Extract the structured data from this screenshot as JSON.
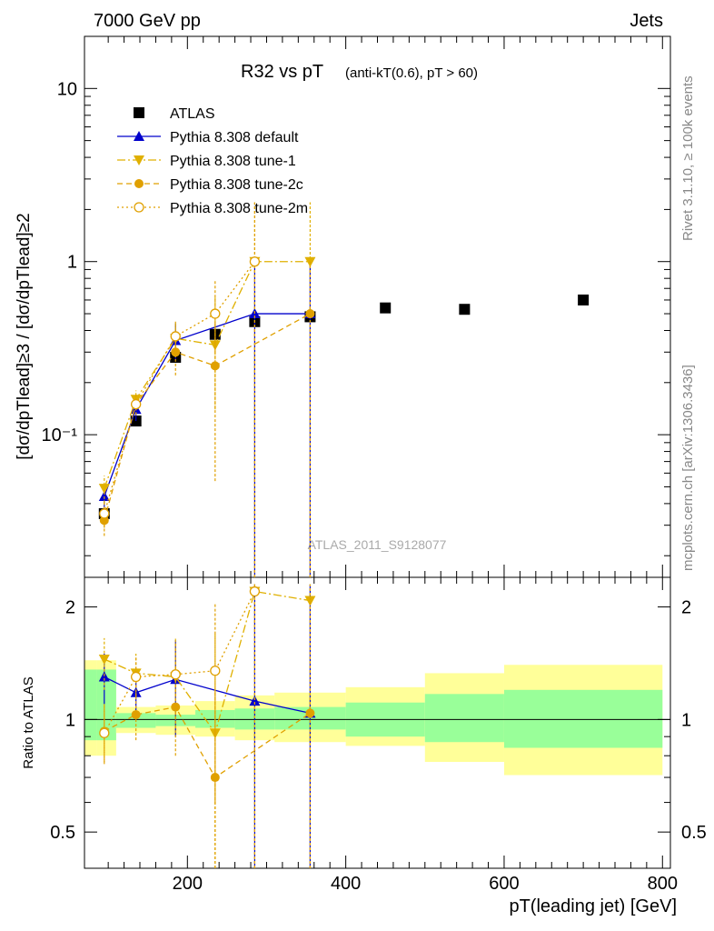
{
  "header": {
    "left": "7000 GeV pp",
    "right": "Jets"
  },
  "side_text": {
    "rivet": "Rivet 3.1.10, ≥ 100k events",
    "mcplots": "mcplots.cern.ch [arXiv:1306.3436]"
  },
  "chart_data": [
    {
      "type": "scatter",
      "title": "R32 vs pT",
      "title_small": "(anti-kT(0.6), pT > 60)",
      "watermark": "ATLAS_2011_S9128077",
      "ylabel": "[dσ/dpTlead]≥3 / [dσ/dpTlead]≥2",
      "xlim": [
        70,
        810
      ],
      "ylim": [
        0.015,
        20
      ],
      "yscale": "log",
      "yticks": [
        0.1,
        1,
        10
      ],
      "ytick_labels": [
        "10⁻¹",
        "1",
        "10"
      ],
      "legend_position": "top-left",
      "series": [
        {
          "name": "ATLAS",
          "color": "#000000",
          "marker": "square",
          "x": [
            95,
            135,
            185,
            235,
            285,
            355,
            450,
            550,
            700
          ],
          "y": [
            0.035,
            0.12,
            0.28,
            0.38,
            0.45,
            0.48,
            0.54,
            0.53,
            0.6
          ]
        },
        {
          "name": "Pythia 8.308 default",
          "color": "#0000cc",
          "marker": "triangle-up",
          "dash": "",
          "x": [
            95,
            135,
            185,
            285,
            355
          ],
          "y": [
            0.044,
            0.14,
            0.35,
            0.5,
            0.5
          ],
          "err": [
            [
              0.038,
              0.05
            ],
            [
              0.12,
              0.16
            ],
            [
              0.27,
              0.44
            ],
            [
              0.0,
              1.0
            ],
            [
              0.0,
              1.0
            ]
          ]
        },
        {
          "name": "Pythia 8.308 tune-1",
          "color": "#e0b000",
          "marker": "triangle-down",
          "dash": "9,3,2,3",
          "x": [
            95,
            135,
            185,
            235,
            285,
            355
          ],
          "y": [
            0.049,
            0.16,
            0.36,
            0.33,
            1.0,
            1.0
          ],
          "err": [
            [
              0.04,
              0.058
            ],
            [
              0.14,
              0.18
            ],
            [
              0.28,
              0.45
            ],
            [
              0.14,
              0.62
            ],
            [
              0.0,
              2.2
            ],
            [
              0.0,
              2.2
            ]
          ]
        },
        {
          "name": "Pythia 8.308 tune-2c",
          "color": "#e0a000",
          "marker": "circle",
          "dash": "6,4",
          "x": [
            95,
            135,
            185,
            235,
            355
          ],
          "y": [
            0.032,
            0.15,
            0.3,
            0.25,
            0.5
          ],
          "err": [
            [
              0.026,
              0.038
            ],
            [
              0.13,
              0.17
            ],
            [
              0.22,
              0.38
            ],
            [
              0.054,
              0.45
            ],
            [
              0.0,
              1.0
            ]
          ]
        },
        {
          "name": "Pythia 8.308 tune-2m",
          "color": "#e0a000",
          "marker": "circle-open",
          "dash": "2,3",
          "x": [
            95,
            135,
            185,
            235,
            285
          ],
          "y": [
            0.035,
            0.15,
            0.37,
            0.5,
            1.0
          ],
          "err": [
            [
              0.029,
              0.042
            ],
            [
              0.13,
              0.17
            ],
            [
              0.29,
              0.45
            ],
            [
              0.3,
              0.78
            ],
            [
              0.0,
              2.2
            ]
          ]
        }
      ]
    },
    {
      "type": "scatter",
      "ylabel": "Ratio to ATLAS",
      "xlabel": "pT(leading jet) [GeV]",
      "xlim": [
        70,
        810
      ],
      "ylim": [
        0.4,
        2.4
      ],
      "yscale": "log",
      "yticks": [
        0.5,
        1,
        2
      ],
      "ytick_labels": [
        "0.5",
        "1",
        "2"
      ],
      "xticks": [
        200,
        400,
        600,
        800
      ],
      "xtick_labels": [
        "200",
        "400",
        "600",
        "800"
      ],
      "bands": {
        "x_edges": [
          70,
          85,
          110,
          160,
          210,
          260,
          310,
          400,
          500,
          600,
          800
        ],
        "green": [
          [
            1.36,
            0.88
          ],
          [
            1.36,
            0.88
          ],
          [
            1.04,
            0.95
          ],
          [
            1.03,
            0.96
          ],
          [
            1.06,
            0.95
          ],
          [
            1.07,
            0.94
          ],
          [
            1.08,
            0.94
          ],
          [
            1.11,
            0.9
          ],
          [
            1.17,
            0.87
          ],
          [
            1.2,
            0.84
          ]
        ],
        "yellow": [
          [
            1.44,
            0.8
          ],
          [
            1.44,
            0.8
          ],
          [
            1.08,
            0.92
          ],
          [
            1.09,
            0.91
          ],
          [
            1.12,
            0.9
          ],
          [
            1.16,
            0.88
          ],
          [
            1.18,
            0.87
          ],
          [
            1.22,
            0.85
          ],
          [
            1.33,
            0.77
          ],
          [
            1.4,
            0.71
          ]
        ]
      },
      "series": [
        {
          "name": "Pythia 8.308 default",
          "color": "#0000cc",
          "marker": "triangle-up",
          "dash": "",
          "x": [
            95,
            135,
            185,
            285,
            355
          ],
          "y": [
            1.3,
            1.18,
            1.28,
            1.12,
            1.04
          ],
          "err": [
            [
              1.1,
              1.5
            ],
            [
              1.0,
              1.36
            ],
            [
              0.9,
              1.63
            ],
            [
              0.0,
              2.3
            ],
            [
              0.0,
              2.3
            ]
          ]
        },
        {
          "name": "Pythia 8.308 tune-1",
          "color": "#e0b000",
          "marker": "triangle-down",
          "dash": "9,3,2,3",
          "x": [
            95,
            135,
            185,
            235,
            285,
            355
          ],
          "y": [
            1.45,
            1.33,
            1.3,
            0.92,
            2.2,
            2.08
          ],
          "err": [
            [
              1.2,
              1.65
            ],
            [
              1.15,
              1.5
            ],
            [
              0.95,
              1.65
            ],
            [
              0.4,
              1.7
            ],
            [
              0.0,
              2.3
            ],
            [
              0.0,
              2.3
            ]
          ]
        },
        {
          "name": "Pythia 8.308 tune-2c",
          "color": "#e0a000",
          "marker": "circle",
          "dash": "6,4",
          "x": [
            95,
            135,
            185,
            235,
            355
          ],
          "y": [
            0.93,
            1.03,
            1.08,
            0.7,
            1.04
          ],
          "err": [
            [
              0.77,
              1.1
            ],
            [
              0.88,
              1.18
            ],
            [
              0.8,
              1.4
            ],
            [
              0.15,
              1.2
            ],
            [
              0.0,
              2.3
            ]
          ]
        },
        {
          "name": "Pythia 8.308 tune-2m",
          "color": "#e0a000",
          "marker": "circle-open",
          "dash": "2,3",
          "x": [
            95,
            135,
            185,
            235,
            285
          ],
          "y": [
            0.92,
            1.3,
            1.32,
            1.35,
            2.2
          ],
          "err": [
            [
              0.76,
              1.1
            ],
            [
              1.15,
              1.47
            ],
            [
              1.0,
              1.62
            ],
            [
              0.6,
              2.05
            ],
            [
              0.0,
              2.3
            ]
          ]
        }
      ]
    }
  ]
}
